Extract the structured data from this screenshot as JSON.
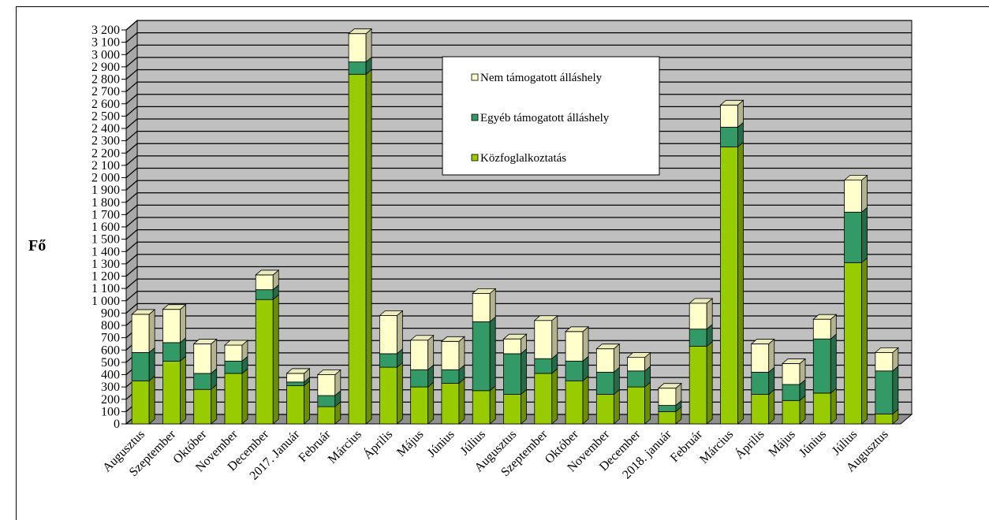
{
  "chart_data": {
    "type": "bar",
    "stacked": true,
    "ylabel": "Fő",
    "ylim": [
      0,
      3200
    ],
    "y_ticks": [
      "0",
      "100",
      "200",
      "300",
      "400",
      "500",
      "600",
      "700",
      "800",
      "900",
      "1 000",
      "1 100",
      "1 200",
      "1 300",
      "1 400",
      "1 500",
      "1 600",
      "1 700",
      "1 800",
      "1 900",
      "2 000",
      "2 100",
      "2 200",
      "2 300",
      "2 400",
      "2 500",
      "2 600",
      "2 700",
      "2 800",
      "2 900",
      "3 000",
      "3 100",
      "3 200"
    ],
    "grid": true,
    "legend_position": "top-right",
    "categories": [
      "Augusztus",
      "Szeptember",
      "Október",
      "November",
      "December",
      "2017. Január",
      "Február",
      "Március",
      "Április",
      "Május",
      "Június",
      "Július",
      "Augusztus",
      "Szeptember",
      "Október",
      "November",
      "December",
      "2018. január",
      "Február",
      "Március",
      "Április",
      "Május",
      "Június",
      "Július",
      "Augusztus"
    ],
    "series": [
      {
        "name": "Közfoglalkoztatás",
        "color": "#99cc00",
        "values": [
          350,
          510,
          280,
          410,
          1010,
          310,
          140,
          2840,
          460,
          300,
          330,
          270,
          240,
          410,
          350,
          240,
          300,
          100,
          630,
          2250,
          240,
          190,
          250,
          1310,
          80
        ]
      },
      {
        "name": "Egyéb támogatott álláshely",
        "color": "#339966",
        "values": [
          230,
          150,
          130,
          100,
          80,
          30,
          90,
          100,
          110,
          140,
          110,
          560,
          330,
          120,
          160,
          180,
          130,
          50,
          140,
          160,
          180,
          130,
          440,
          410,
          350
        ]
      },
      {
        "name": "Nem támogatott álláshely",
        "color": "#ffffcc",
        "values": [
          310,
          270,
          240,
          130,
          120,
          70,
          170,
          230,
          310,
          240,
          230,
          230,
          120,
          310,
          240,
          190,
          110,
          140,
          210,
          180,
          230,
          170,
          160,
          260,
          150
        ]
      }
    ]
  },
  "colors": {
    "plot_background": "#c0c0c0",
    "gridline": "#000000",
    "legend_background": "#ffffff"
  }
}
